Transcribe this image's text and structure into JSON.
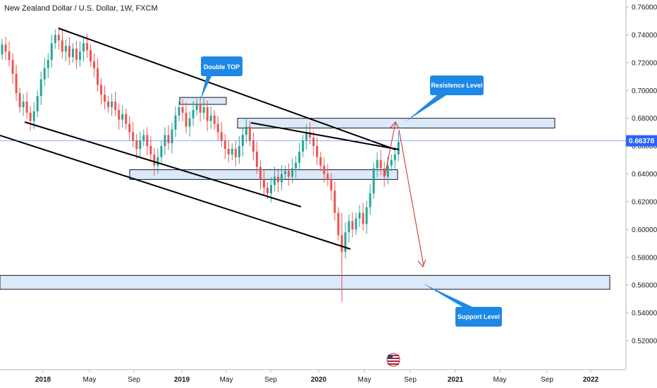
{
  "chart_data": {
    "type": "candlestick",
    "title": "New Zealand Dollar / U.S. Dollar, 1W, FXCM",
    "ylim": [
      0.5,
      0.765
    ],
    "y_ticks": [
      "0.76000",
      "0.74000",
      "0.72000",
      "0.70000",
      "0.68000",
      "0.66000",
      "0.64000",
      "0.62000",
      "0.60000",
      "0.58000",
      "0.56000",
      "0.54000",
      "0.52000"
    ],
    "current_price": "0.66378",
    "x_ticks": [
      {
        "label": "2018",
        "bold": true
      },
      {
        "label": "May",
        "bold": false
      },
      {
        "label": "Sep",
        "bold": false
      },
      {
        "label": "2019",
        "bold": true
      },
      {
        "label": "May",
        "bold": false
      },
      {
        "label": "Sep",
        "bold": false
      },
      {
        "label": "2020",
        "bold": true
      },
      {
        "label": "May",
        "bold": false
      },
      {
        "label": "Sep",
        "bold": false
      },
      {
        "label": "2021",
        "bold": true
      },
      {
        "label": "May",
        "bold": false
      },
      {
        "label": "Sep",
        "bold": false
      },
      {
        "label": "2022",
        "bold": true
      }
    ],
    "closes": [
      0.733,
      0.728,
      0.722,
      0.712,
      0.698,
      0.688,
      0.692,
      0.684,
      0.678,
      0.685,
      0.696,
      0.708,
      0.716,
      0.722,
      0.734,
      0.74,
      0.736,
      0.728,
      0.732,
      0.724,
      0.73,
      0.722,
      0.728,
      0.734,
      0.729,
      0.721,
      0.716,
      0.704,
      0.697,
      0.692,
      0.688,
      0.692,
      0.686,
      0.679,
      0.683,
      0.676,
      0.67,
      0.664,
      0.658,
      0.664,
      0.668,
      0.66,
      0.654,
      0.646,
      0.652,
      0.66,
      0.668,
      0.662,
      0.672,
      0.682,
      0.688,
      0.684,
      0.674,
      0.68,
      0.686,
      0.69,
      0.684,
      0.688,
      0.678,
      0.682,
      0.676,
      0.67,
      0.664,
      0.658,
      0.654,
      0.658,
      0.652,
      0.66,
      0.668,
      0.674,
      0.664,
      0.656,
      0.645,
      0.636,
      0.63,
      0.626,
      0.632,
      0.638,
      0.634,
      0.64,
      0.642,
      0.638,
      0.644,
      0.648,
      0.656,
      0.664,
      0.67,
      0.666,
      0.66,
      0.652,
      0.646,
      0.64,
      0.636,
      0.628,
      0.612,
      0.596,
      0.584,
      0.598,
      0.606,
      0.6,
      0.608,
      0.612,
      0.604,
      0.616,
      0.626,
      0.644,
      0.65,
      0.644,
      0.638,
      0.646,
      0.65,
      0.654,
      0.663
    ],
    "annotations": [
      {
        "label": "Double TOP"
      },
      {
        "label": "Resistence Level"
      },
      {
        "label": "Support Level"
      }
    ],
    "zones": [
      {
        "name": "double-top-zone",
        "y_range": [
          0.69,
          0.695
        ]
      },
      {
        "name": "resistance-zone",
        "y_range": [
          0.673,
          0.68
        ]
      },
      {
        "name": "mid-support-zone",
        "y_range": [
          0.636,
          0.643
        ]
      },
      {
        "name": "support-zone",
        "y_range": [
          0.557,
          0.567
        ]
      }
    ],
    "colors": {
      "up": "#26a69a",
      "down": "#ef5350",
      "zone_fill": "#dbe9f8",
      "callout": "#1e88e5",
      "arrow": "#c62828",
      "price_line": "#2962ff"
    }
  }
}
